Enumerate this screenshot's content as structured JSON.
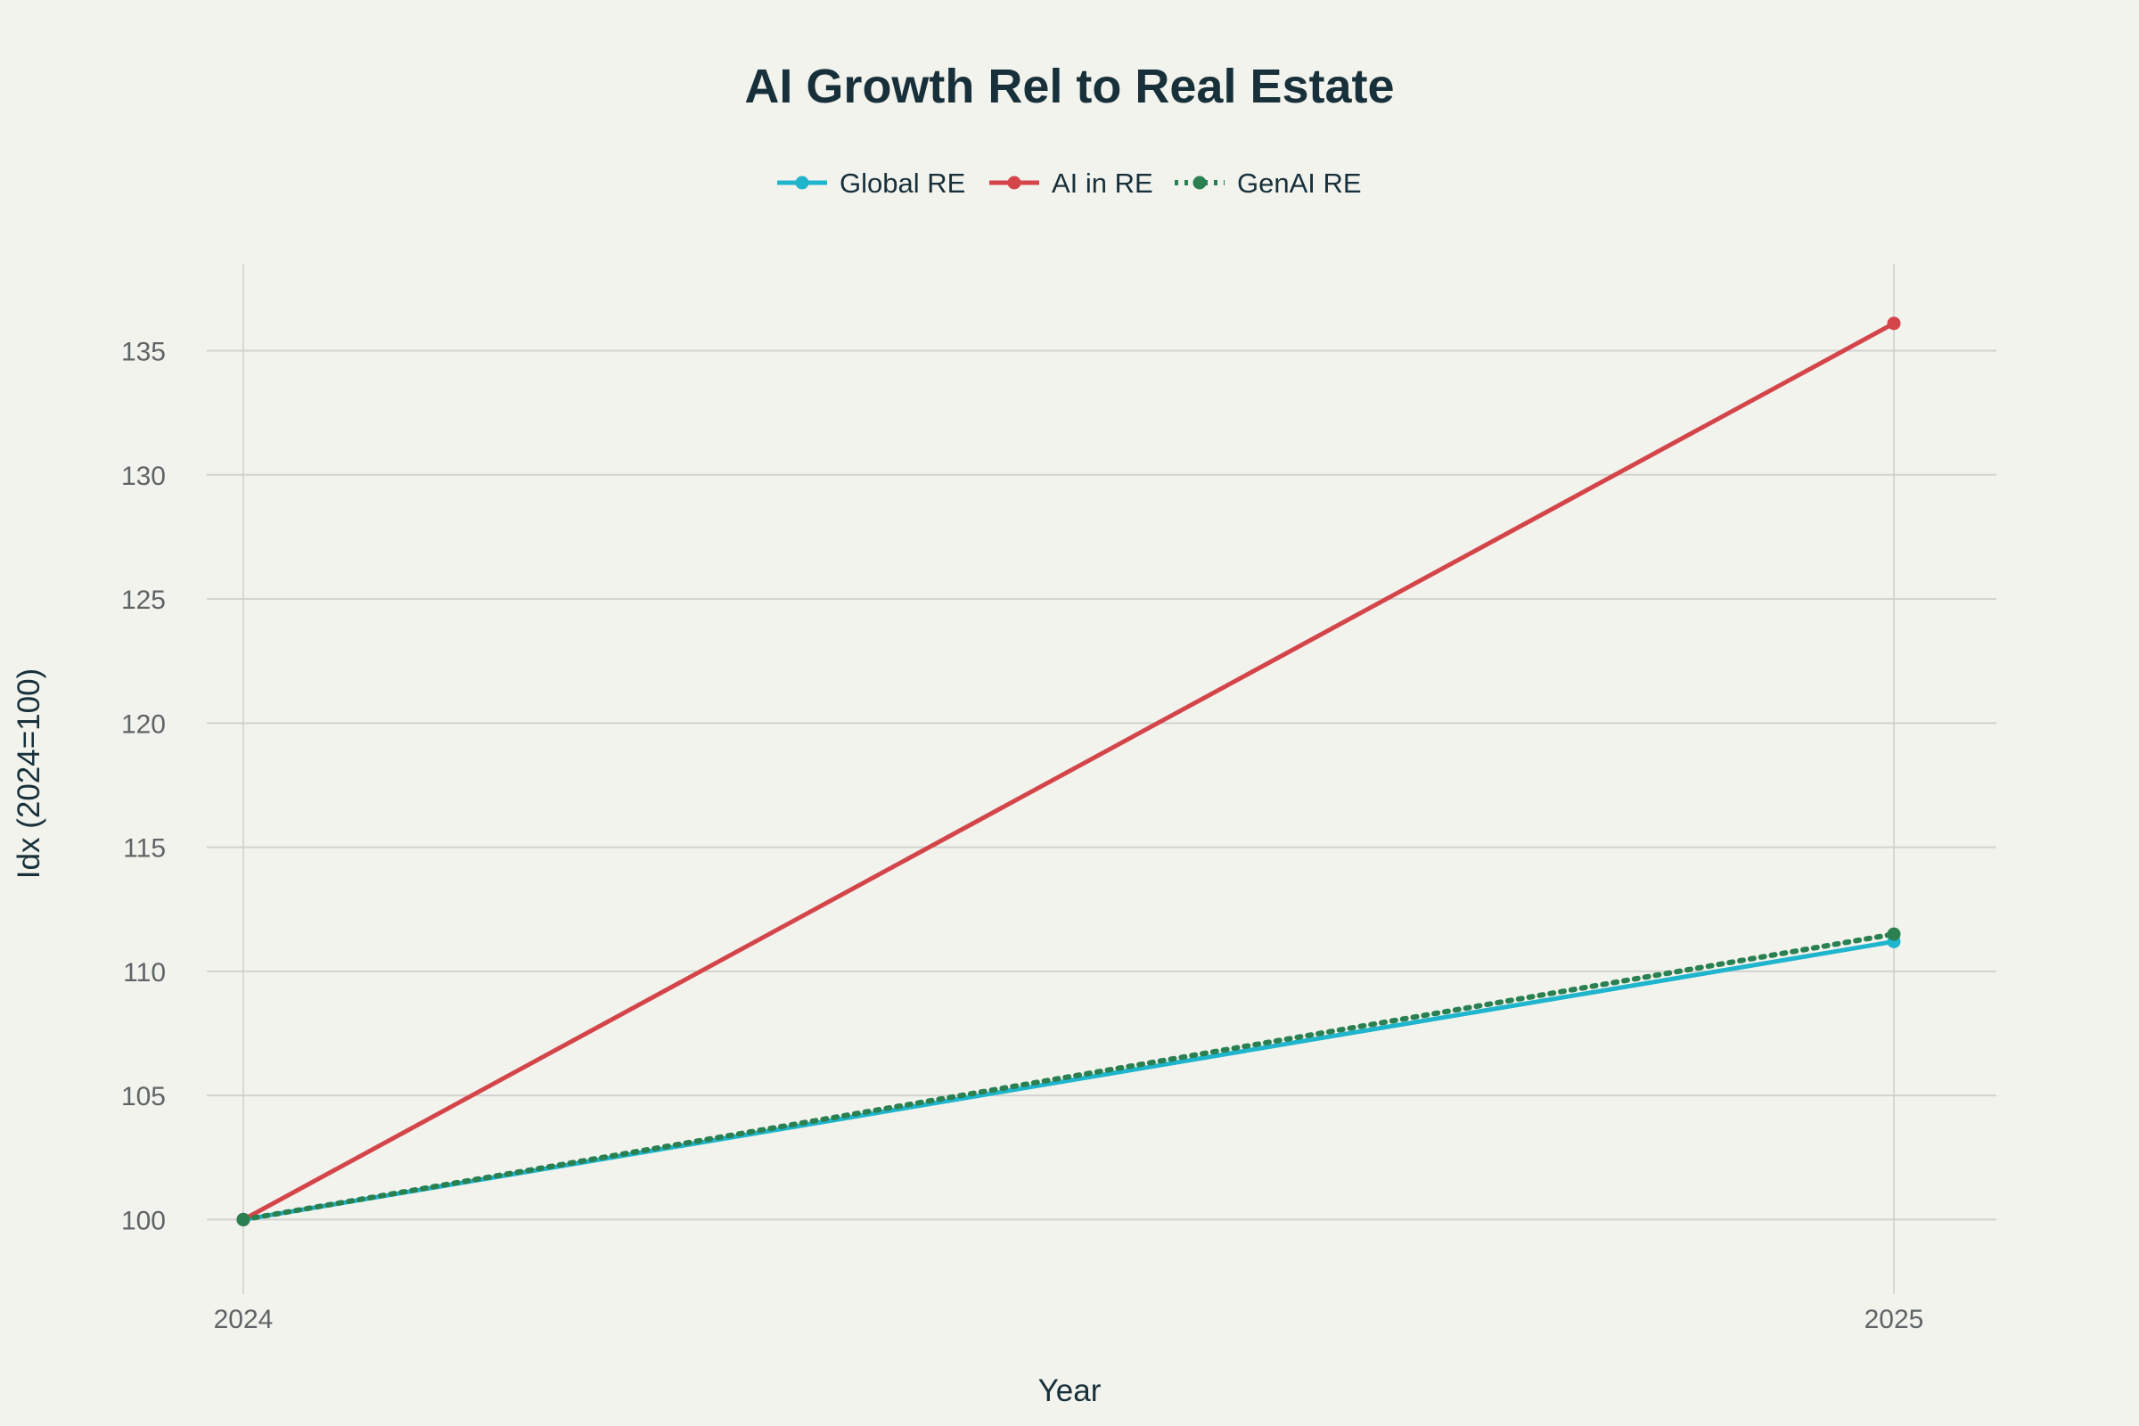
{
  "chart_data": {
    "type": "line",
    "title": "AI Growth Rel to Real Estate",
    "xlabel": "Year",
    "ylabel": "Idx (2024=100)",
    "x": [
      "2024",
      "2025"
    ],
    "ylim": [
      97,
      138.5
    ],
    "yticks": [
      100,
      105,
      110,
      115,
      120,
      125,
      130,
      135
    ],
    "grid": true,
    "legend_position": "top-center",
    "series": [
      {
        "name": "Global RE",
        "values": [
          100,
          111.2
        ],
        "color": "#1fb5cc",
        "dash": "solid"
      },
      {
        "name": "AI in RE",
        "values": [
          100,
          136.1
        ],
        "color": "#d4454a",
        "dash": "solid"
      },
      {
        "name": "GenAI RE",
        "values": [
          100,
          111.5
        ],
        "color": "#2a8050",
        "dash": "dot"
      }
    ]
  }
}
